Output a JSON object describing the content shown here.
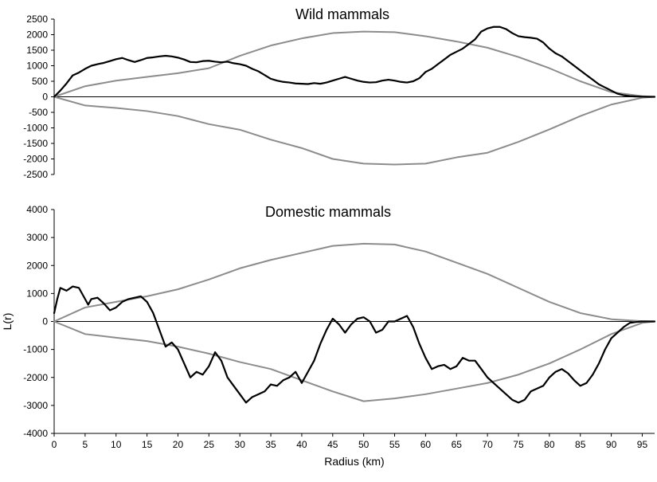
{
  "chart_data": [
    {
      "type": "line",
      "title": "Wild mammals",
      "xlabel": "",
      "ylabel": "",
      "xlim": [
        0,
        97
      ],
      "ylim": [
        -2500,
        2500
      ],
      "yticks": [
        2500,
        2000,
        1500,
        1000,
        500,
        0,
        -500,
        -1000,
        -1500,
        -2000,
        -2500
      ],
      "xticks": [],
      "grid": false,
      "series": [
        {
          "color": "#8c8c8c",
          "x": [
            0,
            5,
            10,
            15,
            20,
            25,
            30,
            35,
            40,
            45,
            50,
            55,
            60,
            65,
            70,
            75,
            80,
            85,
            90,
            95,
            97
          ],
          "y": [
            0,
            340,
            520,
            640,
            760,
            920,
            1320,
            1650,
            1880,
            2050,
            2100,
            2080,
            1950,
            1780,
            1580,
            1280,
            920,
            500,
            150,
            20,
            0
          ]
        },
        {
          "color": "#8c8c8c",
          "x": [
            0,
            5,
            10,
            15,
            20,
            25,
            30,
            35,
            40,
            45,
            50,
            55,
            60,
            65,
            70,
            75,
            80,
            85,
            90,
            95,
            97
          ],
          "y": [
            0,
            -280,
            -360,
            -460,
            -620,
            -880,
            -1060,
            -1380,
            -1650,
            -2000,
            -2150,
            -2180,
            -2150,
            -1950,
            -1800,
            -1450,
            -1050,
            -620,
            -250,
            -30,
            0
          ]
        },
        {
          "color": "#000000",
          "x": [
            0,
            1,
            2,
            3,
            4,
            5,
            6,
            7,
            8,
            9,
            10,
            11,
            12,
            13,
            14,
            15,
            16,
            17,
            18,
            19,
            20,
            21,
            22,
            23,
            24,
            25,
            26,
            27,
            28,
            29,
            30,
            31,
            32,
            33,
            34,
            35,
            36,
            37,
            38,
            39,
            40,
            41,
            42,
            43,
            44,
            45,
            46,
            47,
            48,
            49,
            50,
            51,
            52,
            53,
            54,
            55,
            56,
            57,
            58,
            59,
            60,
            61,
            62,
            63,
            64,
            65,
            66,
            67,
            68,
            69,
            70,
            71,
            72,
            73,
            74,
            75,
            76,
            77,
            78,
            79,
            80,
            81,
            82,
            83,
            84,
            85,
            86,
            87,
            88,
            89,
            90,
            91,
            92,
            93,
            94,
            95,
            96,
            97
          ],
          "y": [
            0,
            200,
            430,
            690,
            780,
            900,
            1000,
            1050,
            1090,
            1150,
            1210,
            1250,
            1180,
            1120,
            1180,
            1250,
            1270,
            1300,
            1320,
            1300,
            1260,
            1200,
            1120,
            1110,
            1150,
            1160,
            1130,
            1110,
            1130,
            1080,
            1050,
            1000,
            900,
            820,
            700,
            580,
            520,
            480,
            460,
            430,
            420,
            410,
            440,
            420,
            460,
            520,
            580,
            640,
            580,
            520,
            480,
            460,
            470,
            520,
            550,
            520,
            480,
            460,
            500,
            600,
            800,
            900,
            1050,
            1200,
            1350,
            1450,
            1550,
            1700,
            1850,
            2100,
            2200,
            2250,
            2250,
            2180,
            2050,
            1950,
            1920,
            1900,
            1870,
            1750,
            1550,
            1400,
            1300,
            1150,
            1000,
            850,
            700,
            550,
            400,
            300,
            200,
            100,
            50,
            20,
            10,
            5,
            0,
            0
          ]
        }
      ]
    },
    {
      "type": "line",
      "title": "Domestic mammals",
      "xlabel": "Radius (km)",
      "ylabel": "L(r)",
      "xlim": [
        0,
        97
      ],
      "ylim": [
        -4000,
        4000
      ],
      "yticks": [
        4000,
        3000,
        2000,
        1000,
        0,
        -1000,
        -2000,
        -3000,
        -4000
      ],
      "xticks": [
        0,
        5,
        10,
        15,
        20,
        25,
        30,
        35,
        40,
        45,
        50,
        55,
        60,
        65,
        70,
        75,
        80,
        85,
        90,
        95
      ],
      "grid": false,
      "series": [
        {
          "color": "#8c8c8c",
          "x": [
            0,
            5,
            10,
            15,
            20,
            25,
            30,
            35,
            40,
            45,
            50,
            55,
            60,
            65,
            70,
            75,
            80,
            85,
            90,
            95,
            97
          ],
          "y": [
            0,
            500,
            700,
            900,
            1150,
            1500,
            1900,
            2200,
            2450,
            2700,
            2780,
            2750,
            2500,
            2100,
            1700,
            1200,
            700,
            300,
            80,
            10,
            0
          ]
        },
        {
          "color": "#8c8c8c",
          "x": [
            0,
            5,
            10,
            15,
            20,
            25,
            30,
            35,
            40,
            45,
            50,
            55,
            60,
            65,
            70,
            75,
            80,
            85,
            90,
            95,
            97
          ],
          "y": [
            0,
            -450,
            -580,
            -700,
            -900,
            -1150,
            -1450,
            -1700,
            -2100,
            -2500,
            -2850,
            -2750,
            -2600,
            -2400,
            -2200,
            -1900,
            -1500,
            -1000,
            -450,
            -50,
            0
          ]
        },
        {
          "color": "#000000",
          "x": [
            0,
            0.5,
            1,
            2,
            3,
            4,
            5,
            5.5,
            6,
            7,
            8,
            9,
            10,
            11,
            12,
            13,
            14,
            15,
            16,
            17,
            18,
            19,
            20,
            21,
            22,
            23,
            24,
            25,
            26,
            27,
            28,
            29,
            30,
            31,
            32,
            33,
            34,
            35,
            36,
            37,
            38,
            39,
            40,
            41,
            42,
            43,
            44,
            45,
            46,
            47,
            48,
            49,
            50,
            51,
            52,
            53,
            54,
            55,
            56,
            57,
            58,
            59,
            60,
            61,
            62,
            63,
            64,
            65,
            66,
            67,
            68,
            69,
            70,
            71,
            72,
            73,
            74,
            75,
            76,
            77,
            78,
            79,
            80,
            81,
            82,
            83,
            84,
            85,
            86,
            87,
            88,
            89,
            90,
            91,
            92,
            93,
            94,
            95,
            96,
            97
          ],
          "y": [
            300,
            800,
            1200,
            1100,
            1250,
            1200,
            800,
            600,
            800,
            850,
            650,
            400,
            500,
            700,
            800,
            850,
            900,
            700,
            300,
            -300,
            -900,
            -750,
            -1000,
            -1500,
            -2000,
            -1800,
            -1900,
            -1600,
            -1100,
            -1400,
            -2000,
            -2300,
            -2600,
            -2900,
            -2700,
            -2600,
            -2500,
            -2250,
            -2300,
            -2100,
            -2000,
            -1800,
            -2200,
            -1800,
            -1400,
            -800,
            -300,
            100,
            -100,
            -400,
            -100,
            100,
            150,
            0,
            -400,
            -300,
            0,
            0,
            100,
            200,
            -200,
            -800,
            -1300,
            -1700,
            -1600,
            -1550,
            -1700,
            -1600,
            -1300,
            -1400,
            -1400,
            -1700,
            -2000,
            -2200,
            -2400,
            -2600,
            -2800,
            -2900,
            -2800,
            -2500,
            -2400,
            -2300,
            -2000,
            -1800,
            -1700,
            -1850,
            -2100,
            -2300,
            -2200,
            -1900,
            -1500,
            -1000,
            -600,
            -400,
            -200,
            -50,
            -20,
            0,
            0,
            0
          ]
        }
      ]
    }
  ]
}
